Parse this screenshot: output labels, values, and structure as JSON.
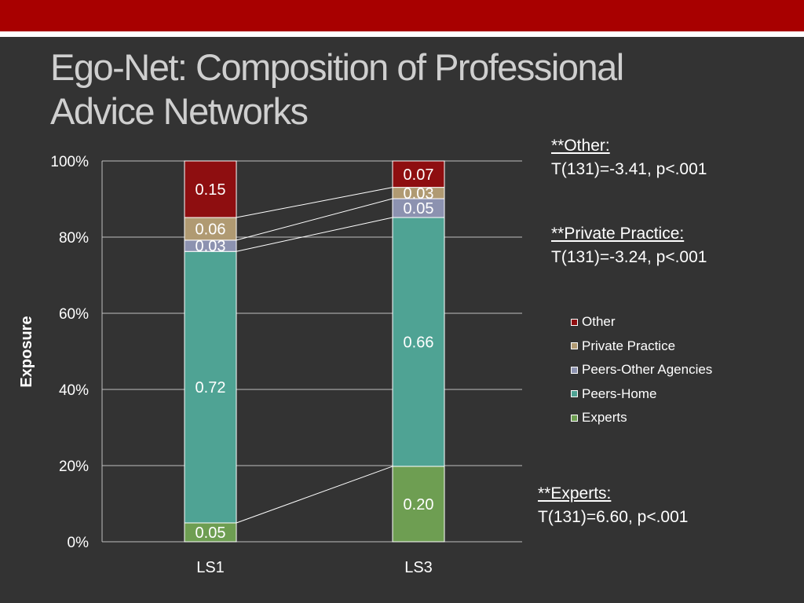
{
  "slide": {
    "title": "Ego-Net: Composition of Professional Advice Networks"
  },
  "notes": [
    {
      "head": "**Other:",
      "body": "T(131)=-3.41, p<.001"
    },
    {
      "head": "**Private Practice:",
      "body": "T(131)=-3.24, p<.001"
    },
    {
      "head": "**Experts:",
      "body": "T(131)=6.60, p<.001"
    }
  ],
  "colors": {
    "Experts": "#6e9e52",
    "Peers-Home": "#4fa394",
    "Peers-Other Agencies": "#8c92b0",
    "Private Practice": "#b09a72",
    "Other": "#8e0e10"
  },
  "chart_data": {
    "type": "bar",
    "stacked": true,
    "percent_axis": true,
    "categories": [
      "LS1",
      "LS3"
    ],
    "series": [
      {
        "name": "Experts",
        "values": [
          0.05,
          0.2
        ]
      },
      {
        "name": "Peers-Home",
        "values": [
          0.72,
          0.66
        ]
      },
      {
        "name": "Peers-Other Agencies",
        "values": [
          0.03,
          0.05
        ]
      },
      {
        "name": "Private Practice",
        "values": [
          0.06,
          0.03
        ]
      },
      {
        "name": "Other",
        "values": [
          0.15,
          0.07
        ]
      }
    ],
    "data_labels": [
      [
        "0.05",
        "0.20"
      ],
      [
        "0.72",
        "0.66"
      ],
      [
        "0.03",
        "0.05"
      ],
      [
        "0.06",
        "0.03"
      ],
      [
        "0.15",
        "0.07"
      ]
    ],
    "ylabel": "Exposure",
    "yticks": [
      "0%",
      "20%",
      "40%",
      "60%",
      "80%",
      "100%"
    ],
    "ylim": [
      0,
      1
    ],
    "series_lines": true,
    "grid": true,
    "legend": [
      "Other",
      "Private Practice",
      "Peers-Other Agencies",
      "Peers-Home",
      "Experts"
    ],
    "legend_position": "right"
  }
}
